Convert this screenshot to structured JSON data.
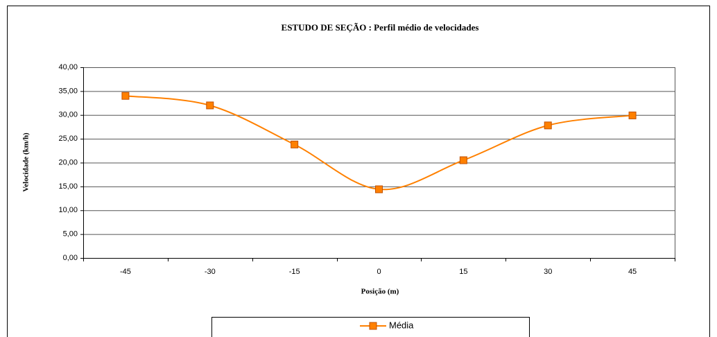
{
  "chart_data": {
    "type": "line",
    "title": "ESTUDO DE SEÇÃO : Perfil médio de velocidades",
    "x_label": "Posição (m)",
    "y_label": "Velocidade (km/h)",
    "categories": [
      "-45",
      "-30",
      "-15",
      "0",
      "15",
      "30",
      "45"
    ],
    "series": [
      {
        "name": "Média",
        "color": "#ff8000",
        "values": [
          34.0,
          32.0,
          23.8,
          14.4,
          20.5,
          27.8,
          29.9
        ]
      }
    ],
    "ylim": [
      0,
      40
    ],
    "yticks": [
      {
        "value": 0,
        "label": "0,00"
      },
      {
        "value": 5,
        "label": "5,00"
      },
      {
        "value": 10,
        "label": "10,00"
      },
      {
        "value": 15,
        "label": "15,00"
      },
      {
        "value": 20,
        "label": "20,00"
      },
      {
        "value": 25,
        "label": "25,00"
      },
      {
        "value": 30,
        "label": "30,00"
      },
      {
        "value": 35,
        "label": "35,00"
      },
      {
        "value": 40,
        "label": "40,00"
      }
    ],
    "grid": true,
    "smooth": true,
    "legend": "bottom"
  }
}
